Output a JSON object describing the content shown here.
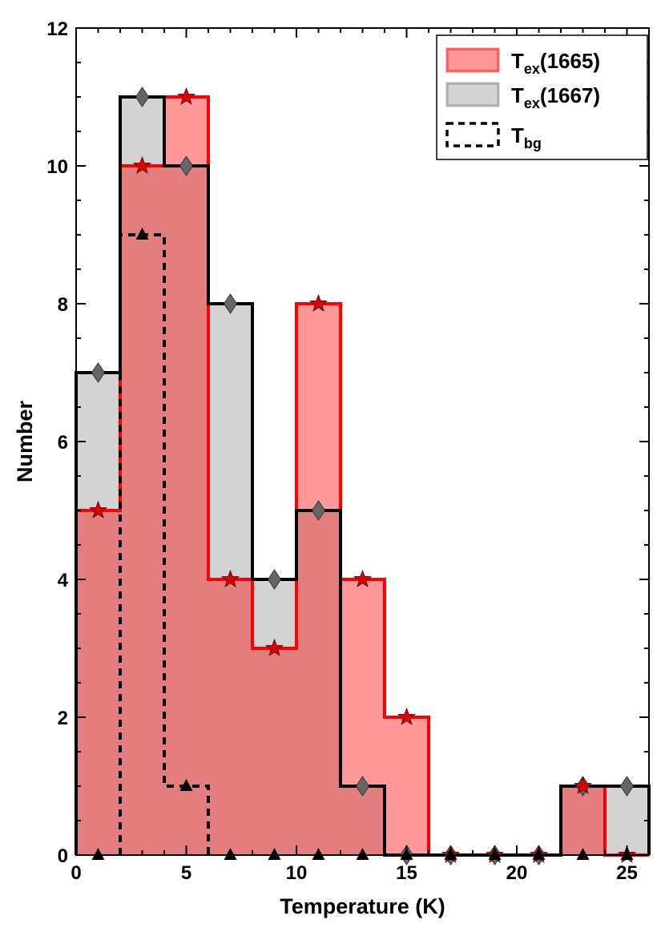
{
  "chart_data": {
    "type": "bar",
    "histogram": true,
    "bin_edges": [
      0,
      2,
      4,
      6,
      8,
      10,
      12,
      14,
      16,
      18,
      20,
      22,
      24,
      26
    ],
    "bin_centers": [
      1,
      3,
      5,
      7,
      9,
      11,
      13,
      15,
      17,
      19,
      21,
      23,
      25
    ],
    "xlabel": "Temperature (K)",
    "ylabel": "Number",
    "xlim": [
      0,
      26
    ],
    "ylim": [
      0,
      12
    ],
    "xticks": [
      0,
      5,
      10,
      15,
      20,
      25
    ],
    "yticks": [
      0,
      2,
      4,
      6,
      8,
      10,
      12
    ],
    "grid": false,
    "legend_position": "top-right",
    "series": [
      {
        "name": "Tex(1665)",
        "legend_main": "T",
        "legend_sub": "ex",
        "legend_suffix": "(1665)",
        "values": [
          5,
          10,
          11,
          4,
          3,
          8,
          4,
          2,
          0,
          0,
          0,
          1,
          0
        ],
        "fill": "#ff0000",
        "fill_opacity": 0.4,
        "stroke": "#ff0000",
        "marker": "star",
        "marker_color": "#dd0000"
      },
      {
        "name": "Tex(1667)",
        "legend_main": "T",
        "legend_sub": "ex",
        "legend_suffix": "(1667)",
        "values": [
          7,
          11,
          10,
          8,
          4,
          5,
          1,
          0,
          0,
          0,
          0,
          1,
          1
        ],
        "fill": "#808080",
        "fill_opacity": 0.35,
        "stroke": "#000000",
        "marker": "diamond",
        "marker_color": "#666666"
      },
      {
        "name": "Tbg",
        "legend_main": "T",
        "legend_sub": "bg",
        "legend_suffix": "",
        "values": [
          0,
          9,
          1,
          0,
          0,
          0,
          0,
          0,
          0,
          0,
          0,
          0,
          0
        ],
        "fill": "none",
        "stroke": "#000000",
        "dashed": true,
        "marker": "triangle",
        "marker_color": "#000000"
      }
    ]
  }
}
